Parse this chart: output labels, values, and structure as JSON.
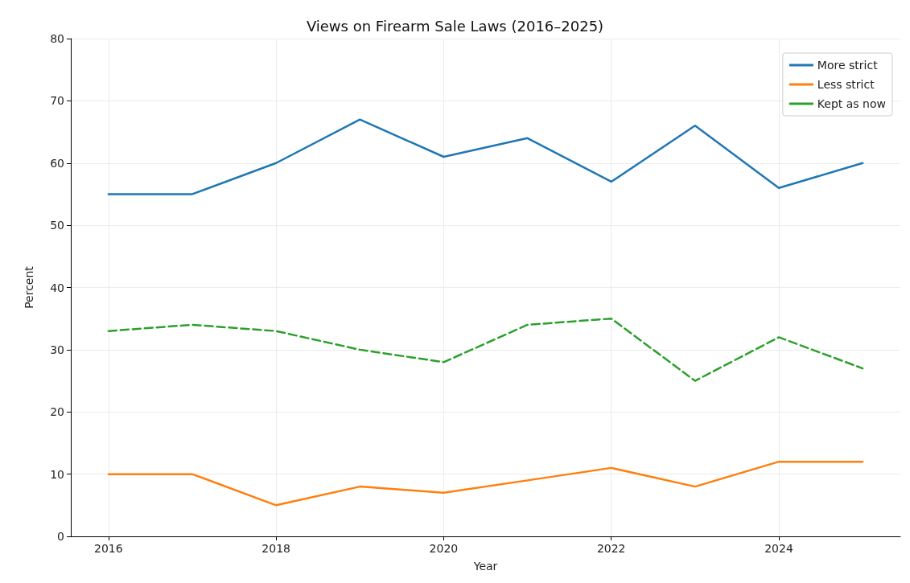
{
  "chart_data": {
    "type": "line",
    "title": "Views on Firearm Sale Laws (2016–2025)",
    "xlabel": "Year",
    "ylabel": "Percent",
    "x": [
      2016,
      2017,
      2018,
      2019,
      2020,
      2021,
      2022,
      2023,
      2024,
      2025
    ],
    "series": [
      {
        "name": "More strict",
        "color": "#1f77b4",
        "line_style": "solid",
        "values": [
          55,
          55,
          60,
          67,
          61,
          64,
          57,
          66,
          56,
          60
        ]
      },
      {
        "name": "Less strict",
        "color": "#ff7f0e",
        "line_style": "solid",
        "values": [
          10,
          10,
          5,
          8,
          7,
          9,
          11,
          8,
          12,
          12
        ]
      },
      {
        "name": "Kept as now",
        "color": "#2ca02c",
        "line_style": "dashed",
        "values": [
          33,
          34,
          33,
          30,
          28,
          34,
          35,
          25,
          32,
          27
        ]
      }
    ],
    "xlim": [
      2015.55,
      2025.45
    ],
    "xticks": [
      2016,
      2018,
      2020,
      2022,
      2024
    ],
    "ylim": [
      0,
      80
    ],
    "yticks": [
      0,
      10,
      20,
      30,
      40,
      50,
      60,
      70,
      80
    ],
    "grid": true,
    "legend": "top right",
    "marker": "none"
  }
}
